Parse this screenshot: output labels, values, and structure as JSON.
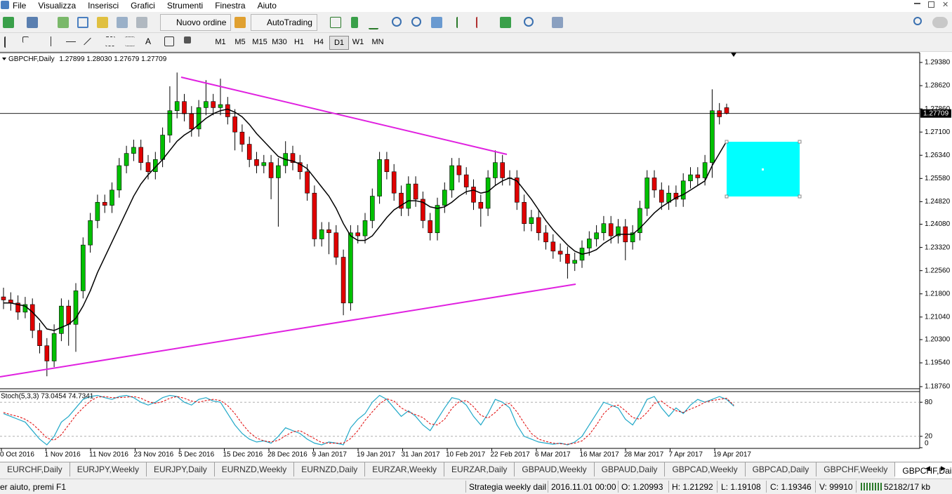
{
  "menu": [
    "File",
    "Visualizza",
    "Inserisci",
    "Grafici",
    "Strumenti",
    "Finestra",
    "Aiuto"
  ],
  "toolbar": {
    "new_order": "Nuovo ordine",
    "autotrading": "AutoTrading"
  },
  "timeframes": [
    "M1",
    "M5",
    "M15",
    "M30",
    "H1",
    "H4",
    "D1",
    "W1",
    "MN"
  ],
  "active_timeframe": "D1",
  "chart_data": {
    "type": "candlestick",
    "title": "GBPCHF,Daily",
    "header_quote": "1.27899 1.28030 1.27679 1.27709",
    "up_color": "#00c000",
    "down_color": "#e00000",
    "ylim": [
      1.18714,
      1.29679
    ],
    "yticks": [
      {
        "value": 1.2938,
        "label": "1.29380"
      },
      {
        "value": 1.2862,
        "label": "1.28620"
      },
      {
        "value": 1.2786,
        "label": "1.27860"
      },
      {
        "value": 1.271,
        "label": "1.27100"
      },
      {
        "value": 1.2634,
        "label": "1.26340"
      },
      {
        "value": 1.2558,
        "label": "1.25580"
      },
      {
        "value": 1.2482,
        "label": "1.24820"
      },
      {
        "value": 1.2408,
        "label": "1.24080"
      },
      {
        "value": 1.2332,
        "label": "1.23320"
      },
      {
        "value": 1.2256,
        "label": "1.22560"
      },
      {
        "value": 1.218,
        "label": "1.21800"
      },
      {
        "value": 1.2104,
        "label": "1.21040"
      },
      {
        "value": 1.203,
        "label": "1.20300"
      },
      {
        "value": 1.1954,
        "label": "1.19540"
      },
      {
        "value": 1.1876,
        "label": "1.18760"
      }
    ],
    "current_price": 1.27709,
    "x_labels": [
      "0 Oct 2016",
      "1 Nov 2016",
      "11 Nov 2016",
      "23 Nov 2016",
      "5 Dec 2016",
      "15 Dec 2016",
      "28 Dec 2016",
      "9 Jan 2017",
      "19 Jan 2017",
      "31 Jan 2017",
      "10 Feb 2017",
      "22 Feb 2017",
      "6 Mar 2017",
      "16 Mar 2017",
      "28 Mar 2017",
      "7 Apr 2017",
      "19 Apr 2017"
    ],
    "ohlc": [
      [
        1.217,
        1.22,
        1.213,
        1.216
      ],
      [
        1.216,
        1.2185,
        1.2125,
        1.215
      ],
      [
        1.215,
        1.2175,
        1.2095,
        1.212
      ],
      [
        1.212,
        1.217,
        1.21,
        1.2145
      ],
      [
        1.2145,
        1.2165,
        1.2035,
        1.206
      ],
      [
        1.206,
        1.2085,
        1.1985,
        1.201
      ],
      [
        1.201,
        1.2035,
        1.191,
        1.196
      ],
      [
        1.196,
        1.208,
        1.194,
        1.205
      ],
      [
        1.205,
        1.2165,
        1.2025,
        1.214
      ],
      [
        1.214,
        1.216,
        1.201,
        1.208
      ],
      [
        1.208,
        1.2215,
        1.199,
        1.219
      ],
      [
        1.219,
        1.2365,
        1.2165,
        1.234
      ],
      [
        1.234,
        1.2445,
        1.2315,
        1.242
      ],
      [
        1.242,
        1.2505,
        1.2395,
        1.248
      ],
      [
        1.248,
        1.2505,
        1.2445,
        1.247
      ],
      [
        1.247,
        1.2545,
        1.2445,
        1.252
      ],
      [
        1.252,
        1.2625,
        1.2495,
        1.26
      ],
      [
        1.26,
        1.2665,
        1.2575,
        1.264
      ],
      [
        1.264,
        1.2685,
        1.2615,
        1.266
      ],
      [
        1.266,
        1.2685,
        1.2585,
        1.261
      ],
      [
        1.261,
        1.2635,
        1.2555,
        1.258
      ],
      [
        1.258,
        1.2645,
        1.2555,
        1.262
      ],
      [
        1.262,
        1.2725,
        1.2595,
        1.27
      ],
      [
        1.27,
        1.286,
        1.2675,
        1.278
      ],
      [
        1.278,
        1.2905,
        1.2755,
        1.281
      ],
      [
        1.281,
        1.2835,
        1.2745,
        1.277
      ],
      [
        1.277,
        1.2795,
        1.2695,
        1.272
      ],
      [
        1.272,
        1.2815,
        1.2695,
        1.279
      ],
      [
        1.279,
        1.288,
        1.2765,
        1.281
      ],
      [
        1.281,
        1.2835,
        1.2765,
        1.279
      ],
      [
        1.279,
        1.2885,
        1.2765,
        1.28
      ],
      [
        1.28,
        1.2825,
        1.2735,
        1.276
      ],
      [
        1.276,
        1.2785,
        1.265,
        1.271
      ],
      [
        1.271,
        1.2735,
        1.2645,
        1.267
      ],
      [
        1.267,
        1.2695,
        1.2595,
        1.262
      ],
      [
        1.262,
        1.2645,
        1.2575,
        1.26
      ],
      [
        1.26,
        1.2635,
        1.2575,
        1.261
      ],
      [
        1.261,
        1.2635,
        1.249,
        1.256
      ],
      [
        1.256,
        1.2625,
        1.24,
        1.26
      ],
      [
        1.26,
        1.268,
        1.2575,
        1.264
      ],
      [
        1.264,
        1.2665,
        1.2585,
        1.261
      ],
      [
        1.261,
        1.2635,
        1.2555,
        1.258
      ],
      [
        1.258,
        1.2605,
        1.2485,
        1.251
      ],
      [
        1.251,
        1.2535,
        1.2335,
        1.236
      ],
      [
        1.236,
        1.2415,
        1.2335,
        1.239
      ],
      [
        1.239,
        1.2415,
        1.231,
        1.238
      ],
      [
        1.238,
        1.2405,
        1.2275,
        1.23
      ],
      [
        1.23,
        1.2325,
        1.211,
        1.215
      ],
      [
        1.215,
        1.2405,
        1.2125,
        1.238
      ],
      [
        1.238,
        1.2405,
        1.2345,
        1.237
      ],
      [
        1.237,
        1.2445,
        1.2345,
        1.242
      ],
      [
        1.242,
        1.2525,
        1.2395,
        1.25
      ],
      [
        1.25,
        1.2645,
        1.2475,
        1.262
      ],
      [
        1.262,
        1.2645,
        1.2555,
        1.258
      ],
      [
        1.258,
        1.2605,
        1.2485,
        1.251
      ],
      [
        1.251,
        1.2535,
        1.2435,
        1.246
      ],
      [
        1.246,
        1.2565,
        1.2435,
        1.254
      ],
      [
        1.254,
        1.2565,
        1.2465,
        1.249
      ],
      [
        1.249,
        1.2515,
        1.2395,
        1.242
      ],
      [
        1.242,
        1.2445,
        1.2355,
        1.238
      ],
      [
        1.238,
        1.2495,
        1.2355,
        1.247
      ],
      [
        1.247,
        1.2545,
        1.2445,
        1.252
      ],
      [
        1.252,
        1.2625,
        1.2495,
        1.26
      ],
      [
        1.26,
        1.2625,
        1.2545,
        1.257
      ],
      [
        1.257,
        1.2595,
        1.2505,
        1.253
      ],
      [
        1.253,
        1.2555,
        1.2455,
        1.248
      ],
      [
        1.248,
        1.2505,
        1.24,
        1.246
      ],
      [
        1.246,
        1.2585,
        1.2435,
        1.256
      ],
      [
        1.256,
        1.265,
        1.2535,
        1.261
      ],
      [
        1.261,
        1.2635,
        1.2535,
        1.256
      ],
      [
        1.256,
        1.2585,
        1.2535,
        1.256
      ],
      [
        1.256,
        1.2585,
        1.2455,
        1.248
      ],
      [
        1.248,
        1.2505,
        1.2385,
        1.241
      ],
      [
        1.241,
        1.2455,
        1.2385,
        1.243
      ],
      [
        1.243,
        1.2455,
        1.2355,
        1.238
      ],
      [
        1.238,
        1.2405,
        1.2325,
        1.235
      ],
      [
        1.235,
        1.2375,
        1.2295,
        1.232
      ],
      [
        1.232,
        1.2345,
        1.2285,
        1.231
      ],
      [
        1.231,
        1.2335,
        1.223,
        1.228
      ],
      [
        1.228,
        1.2315,
        1.2255,
        1.229
      ],
      [
        1.229,
        1.2355,
        1.2265,
        1.233
      ],
      [
        1.233,
        1.2385,
        1.2305,
        1.236
      ],
      [
        1.236,
        1.2405,
        1.2335,
        1.238
      ],
      [
        1.238,
        1.2435,
        1.2355,
        1.241
      ],
      [
        1.241,
        1.2435,
        1.2345,
        1.237
      ],
      [
        1.237,
        1.2425,
        1.2345,
        1.24
      ],
      [
        1.24,
        1.2425,
        1.229,
        1.235
      ],
      [
        1.235,
        1.2405,
        1.2325,
        1.238
      ],
      [
        1.238,
        1.2485,
        1.2355,
        1.246
      ],
      [
        1.246,
        1.2585,
        1.2435,
        1.256
      ],
      [
        1.256,
        1.2585,
        1.2495,
        1.252
      ],
      [
        1.252,
        1.2545,
        1.2455,
        1.248
      ],
      [
        1.248,
        1.2535,
        1.2455,
        1.251
      ],
      [
        1.251,
        1.2535,
        1.2465,
        1.249
      ],
      [
        1.249,
        1.2575,
        1.2465,
        1.255
      ],
      [
        1.255,
        1.2595,
        1.2525,
        1.257
      ],
      [
        1.257,
        1.2595,
        1.2535,
        1.256
      ],
      [
        1.256,
        1.2635,
        1.2535,
        1.261
      ],
      [
        1.261,
        1.285,
        1.256,
        1.278
      ],
      [
        1.278,
        1.2805,
        1.2735,
        1.276
      ],
      [
        1.27899,
        1.2803,
        1.27679,
        1.27709
      ]
    ],
    "ma": {
      "color": "#000000",
      "values": [
        1.215,
        1.215,
        1.2145,
        1.214,
        1.212,
        1.2095,
        1.2065,
        1.206,
        1.207,
        1.208,
        1.21,
        1.214,
        1.219,
        1.225,
        1.23,
        1.235,
        1.24,
        1.245,
        1.25,
        1.254,
        1.257,
        1.2595,
        1.262,
        1.265,
        1.268,
        1.27,
        1.2715,
        1.2735,
        1.2755,
        1.277,
        1.278,
        1.2785,
        1.2775,
        1.276,
        1.2735,
        1.2705,
        1.268,
        1.2655,
        1.263,
        1.262,
        1.2615,
        1.2605,
        1.259,
        1.256,
        1.253,
        1.25,
        1.246,
        1.241,
        1.237,
        1.2355,
        1.2355,
        1.237,
        1.24,
        1.243,
        1.2455,
        1.247,
        1.2485,
        1.2485,
        1.248,
        1.2465,
        1.246,
        1.2465,
        1.248,
        1.25,
        1.2515,
        1.252,
        1.251,
        1.2515,
        1.2535,
        1.255,
        1.256,
        1.255,
        1.252,
        1.249,
        1.2455,
        1.242,
        1.239,
        1.2365,
        1.234,
        1.232,
        1.231,
        1.2315,
        1.2325,
        1.2345,
        1.236,
        1.2375,
        1.2375,
        1.2375,
        1.2395,
        1.242,
        1.2445,
        1.2465,
        1.248,
        1.2495,
        1.2505,
        1.252,
        1.2535,
        1.255,
        1.26,
        1.264,
        1.268
      ]
    },
    "stoch": {
      "label": "Stoch(5,3,3) 73.0454 74.7341",
      "ylim": [
        0,
        100
      ],
      "yticks": [
        80,
        20,
        0
      ],
      "levels": [
        80,
        20
      ],
      "main": {
        "color": "#20a8c8",
        "values": [
          60,
          55,
          50,
          45,
          30,
          15,
          5,
          20,
          45,
          55,
          70,
          85,
          90,
          92,
          88,
          85,
          90,
          92,
          88,
          80,
          75,
          80,
          88,
          92,
          90,
          80,
          75,
          85,
          88,
          82,
          80,
          60,
          40,
          25,
          15,
          10,
          12,
          8,
          20,
          35,
          30,
          25,
          15,
          8,
          5,
          10,
          8,
          5,
          35,
          50,
          60,
          80,
          92,
          85,
          70,
          55,
          65,
          55,
          40,
          30,
          50,
          70,
          88,
          85,
          75,
          55,
          40,
          60,
          85,
          80,
          70,
          40,
          20,
          15,
          10,
          8,
          6,
          8,
          5,
          10,
          20,
          40,
          60,
          80,
          75,
          70,
          50,
          40,
          60,
          85,
          90,
          70,
          55,
          70,
          60,
          75,
          85,
          80,
          85,
          90,
          85,
          73.0454
        ]
      },
      "signal": {
        "color": "#e00000",
        "values": [
          62,
          58,
          55,
          50,
          42,
          30,
          17,
          13,
          23,
          40,
          57,
          70,
          82,
          89,
          90,
          88,
          88,
          89,
          90,
          87,
          81,
          78,
          81,
          87,
          90,
          87,
          82,
          80,
          83,
          85,
          83,
          74,
          60,
          42,
          27,
          17,
          12,
          10,
          13,
          21,
          28,
          30,
          23,
          16,
          9,
          8,
          8,
          8,
          16,
          30,
          48,
          63,
          77,
          86,
          82,
          70,
          63,
          58,
          53,
          42,
          40,
          50,
          69,
          81,
          83,
          72,
          57,
          52,
          62,
          75,
          78,
          63,
          43,
          25,
          15,
          11,
          8,
          7,
          6,
          8,
          12,
          23,
          40,
          60,
          72,
          75,
          65,
          53,
          50,
          62,
          78,
          82,
          72,
          65,
          62,
          68,
          73,
          80,
          83,
          85,
          87,
          74.7341
        ]
      }
    }
  },
  "tabs": [
    "EURCHF,Daily",
    "EURJPY,Weekly",
    "EURJPY,Daily",
    "EURNZD,Weekly",
    "EURNZD,Daily",
    "EURZAR,Weekly",
    "EURZAR,Daily",
    "GBPAUD,Weekly",
    "GBPAUD,Daily",
    "GBPCAD,Weekly",
    "GBPCAD,Daily",
    "GBPCHF,Weekly",
    "GBPCHF,Daily"
  ],
  "active_tab": "GBPCHF,Daily",
  "status": {
    "help": "er aiuto, premi F1",
    "profile": "Strategia weekly dail",
    "time": "2016.11.01 00:00",
    "open": "O: 1.20993",
    "high": "H: 1.21292",
    "low": "L: 1.19108",
    "close": "C: 1.19346",
    "volume": "V: 99910",
    "traffic": "52182/17 kb"
  }
}
